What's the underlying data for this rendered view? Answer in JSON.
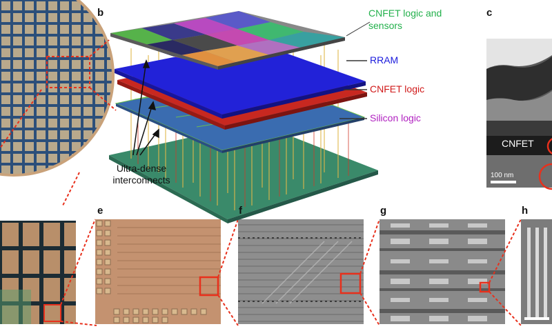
{
  "panels": {
    "b": "b",
    "c": "c",
    "e": "e",
    "f": "f",
    "g": "g",
    "h": "h"
  },
  "layers": {
    "top": {
      "text_line1": "CNFET logic and",
      "text_line2": "sensors",
      "color": "#22b04b"
    },
    "rram": {
      "text": "RRAM",
      "color": "#1a1adc"
    },
    "cnfet": {
      "text": "CNFET logic",
      "color": "#d01818"
    },
    "silicon": {
      "text": "Silicon logic",
      "color": "#b020c0"
    }
  },
  "interconnects": {
    "line1": "Ultra-dense",
    "line2": "interconnects"
  },
  "tem": {
    "label": "CNFET",
    "scale": "100 nm"
  },
  "colors": {
    "highlight": "#e8301c"
  }
}
